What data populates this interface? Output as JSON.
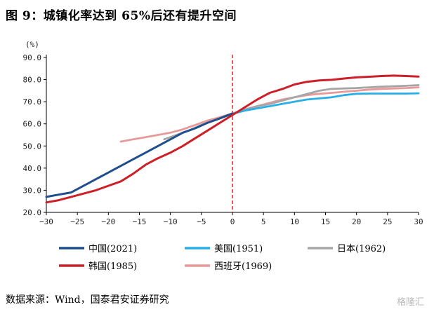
{
  "figure": {
    "title": "图 9：城镇化率达到 65%后还有提升空间",
    "source": "数据来源：Wind，国泰君安证券研究",
    "watermark": "格隆汇"
  },
  "colors": {
    "china": "#1f4e8c",
    "usa": "#29aee8",
    "japan": "#a6a6a6",
    "korea": "#cc1f27",
    "spain": "#e89a9a",
    "refline": "#e0282c"
  },
  "chart_data": {
    "type": "line",
    "title": "",
    "ylabel": "(%)",
    "xlabel": "",
    "xlim": [
      -30,
      30
    ],
    "ylim": [
      20,
      90
    ],
    "xticks": [
      -30,
      -25,
      -20,
      -15,
      -10,
      -5,
      0,
      5,
      10,
      15,
      20,
      25,
      30
    ],
    "yticks": [
      20,
      30,
      40,
      50,
      60,
      70,
      80,
      90
    ],
    "ytick_labels": [
      "20.0",
      "30.0",
      "40.0",
      "50.0",
      "60.0",
      "70.0",
      "80.0",
      "90.0"
    ],
    "reference_line_x": 0,
    "legend_position": "bottom",
    "series": [
      {
        "name": "中国(2021)",
        "color_key": "china",
        "x": [
          -30,
          -28,
          -26,
          -24,
          -22,
          -20,
          -18,
          -16,
          -14,
          -12,
          -10,
          -8,
          -6,
          -4,
          -2,
          0
        ],
        "y": [
          27,
          28,
          29,
          32,
          35,
          38,
          41,
          44,
          47,
          50,
          53,
          56,
          58,
          60.5,
          62.5,
          64.7
        ]
      },
      {
        "name": "美国(1951)",
        "color_key": "usa",
        "x": [
          0,
          2,
          4,
          6,
          8,
          10,
          12,
          14,
          16,
          18,
          20,
          22,
          24,
          26,
          28,
          30
        ],
        "y": [
          64.5,
          66,
          67,
          68,
          69,
          70,
          71,
          71.5,
          72,
          73,
          73.6,
          73.7,
          73.7,
          73.7,
          73.7,
          73.8
        ]
      },
      {
        "name": "日本(1962)",
        "color_key": "japan",
        "x": [
          -11,
          -9,
          -7,
          -5,
          -3,
          -1,
          0,
          2,
          4,
          6,
          8,
          10,
          12,
          14,
          16,
          18,
          20,
          22,
          24,
          26,
          28,
          30
        ],
        "y": [
          53,
          55,
          57,
          59.5,
          61.5,
          63.5,
          64.5,
          66.5,
          68,
          69,
          70.5,
          72,
          73.5,
          75,
          75.8,
          76,
          76.2,
          76.5,
          76.8,
          77,
          77.2,
          77.5
        ]
      },
      {
        "name": "韩国(1985)",
        "color_key": "korea",
        "x": [
          -30,
          -28,
          -26,
          -24,
          -22,
          -20,
          -18,
          -16,
          -14,
          -12,
          -10,
          -8,
          -6,
          -4,
          -2,
          0,
          2,
          4,
          6,
          8,
          10,
          12,
          14,
          16,
          18,
          20,
          22,
          24,
          26,
          28,
          30
        ],
        "y": [
          24.5,
          25.5,
          27,
          28.5,
          30,
          32,
          34,
          37.5,
          41.5,
          44.5,
          47,
          50,
          53.5,
          57,
          60.5,
          64,
          67.5,
          71,
          74,
          75.7,
          77.8,
          79,
          79.6,
          79.9,
          80.5,
          81,
          81.3,
          81.6,
          81.8,
          81.6,
          81.4
        ]
      },
      {
        "name": "西班牙(1969)",
        "color_key": "spain",
        "x": [
          -18,
          -16,
          -14,
          -12,
          -10,
          -8,
          -6,
          -4,
          -2,
          0,
          2,
          4,
          6,
          8,
          10,
          12,
          14,
          16,
          18,
          20,
          22,
          24,
          26,
          28,
          30
        ],
        "y": [
          52,
          53,
          54,
          55,
          56,
          57.5,
          59.5,
          61.5,
          63,
          64.7,
          66.5,
          68,
          69.5,
          71,
          72,
          73,
          73.6,
          74,
          74.5,
          75,
          75.5,
          75.8,
          76,
          76.2,
          76.5
        ]
      }
    ]
  }
}
